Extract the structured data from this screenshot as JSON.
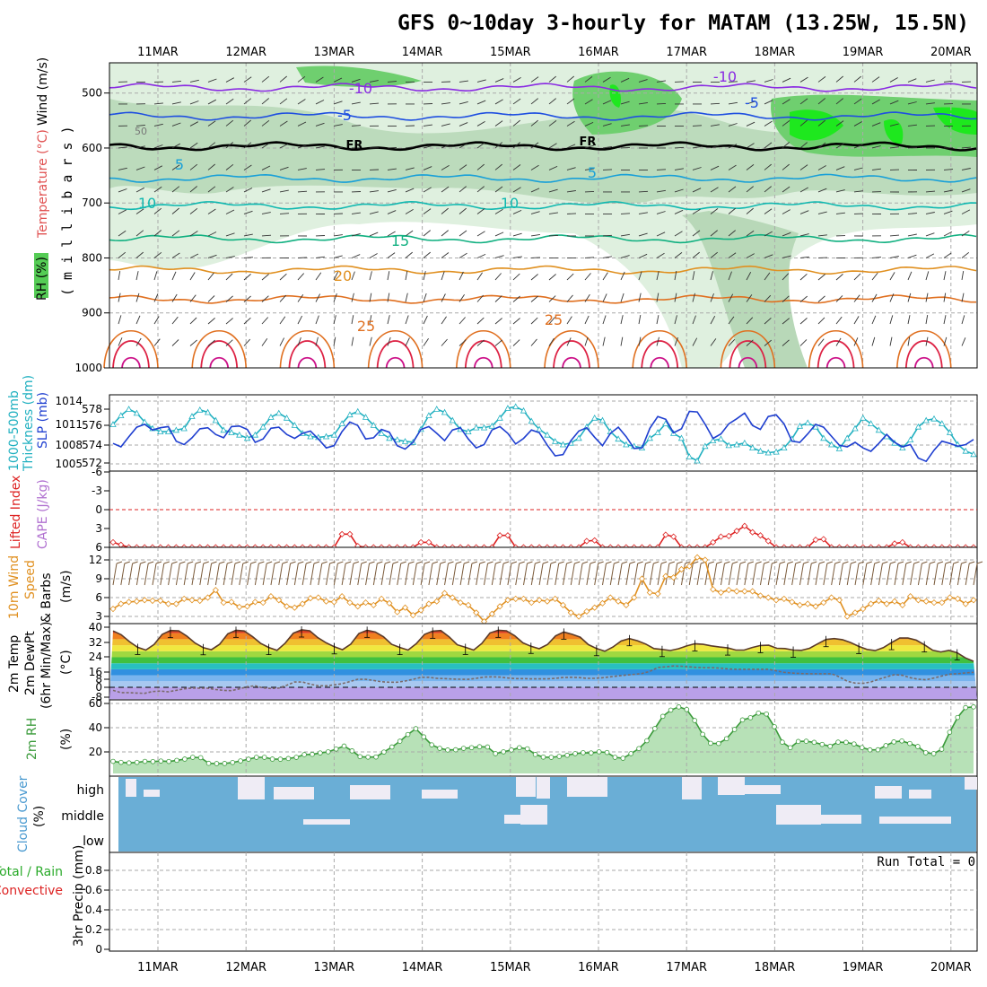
{
  "title": "GFS 0~10day 3-hourly for MATAM (13.25W, 15.5N)",
  "dates": [
    "11MAR",
    "12MAR",
    "13MAR",
    "14MAR",
    "15MAR",
    "16MAR",
    "17MAR",
    "18MAR",
    "19MAR",
    "20MAR"
  ],
  "colors": {
    "frame": "#000000",
    "grid": "#aaaaaa",
    "rh_green_light": "#dff0df",
    "rh_green_mid": "#b8d8b8",
    "rh_green_dark": "#6fcf6f",
    "rh_green_bright": "#1ee81e",
    "thickness": "#20b0c0",
    "slp": "#1f3fd0",
    "lifted_index": "#dd2222",
    "cape": "#b070d0",
    "wind_speed": "#e09020",
    "wind_barb": "#7a5a3a",
    "dewpoint": "#7a6a6a",
    "rh2m_line": "#3a9a3a",
    "cloud_fill": "#6aaed6",
    "cloud_gap": "#efecf5",
    "precip_total": "#2aaa2a",
    "precip_convective": "#dd2222"
  },
  "panels": {
    "upper": {
      "ylabel_rh": "RH (%)",
      "ylabel_temp": "Temperature (°C)",
      "ylabel_wind": "Wind (m/s)",
      "ylabel_p": "( m i l l i b a r s )",
      "ticks": [
        "500",
        "600",
        "700",
        "800",
        "900",
        "1000"
      ],
      "rh_label": "50",
      "isotherm_labels": [
        {
          "text": "-10",
          "color": "#8a2be2"
        },
        {
          "text": "-10",
          "color": "#8a2be2"
        },
        {
          "text": "-5",
          "color": "#1f4fe0"
        },
        {
          "text": "-5",
          "color": "#1f4fe0"
        },
        {
          "text": "FR",
          "color": "#000000"
        },
        {
          "text": "FR",
          "color": "#000000"
        },
        {
          "text": "5",
          "color": "#18a0d8"
        },
        {
          "text": "5",
          "color": "#18a0d8"
        },
        {
          "text": "10",
          "color": "#10b8b0"
        },
        {
          "text": "10",
          "color": "#10b8b0"
        },
        {
          "text": "15",
          "color": "#10b080"
        },
        {
          "text": "20",
          "color": "#e09020"
        },
        {
          "text": "25",
          "color": "#e07020"
        },
        {
          "text": "25",
          "color": "#e07020"
        }
      ]
    },
    "thickness_slp": {
      "ylabel_left_top": "1000-500mb",
      "ylabel_left_bottom": "Thickness (dm)",
      "ylabel_right": "SLP (mb)",
      "thickness_ticks": [
        "578",
        "576",
        "574",
        "572"
      ],
      "slp_ticks": [
        "1014",
        "1011",
        "1008",
        "1005"
      ]
    },
    "li_cape": {
      "ylabel_li": "Lifted Index",
      "ylabel_cape": "CAPE (J/kg)",
      "ticks": [
        "-6",
        "-3",
        "0",
        "3",
        "6"
      ]
    },
    "wind10m": {
      "ylabel_1": "10m Wind",
      "ylabel_2": "Speed",
      "ylabel_3": "& Barbs",
      "units": "(m/s)",
      "ticks": [
        "12",
        "9",
        "6",
        "3"
      ]
    },
    "temp2m": {
      "ylabel_1": "2m Temp",
      "ylabel_2": "2m DewPt",
      "ylabel_3": "(6hr Min/Max)",
      "units": "(°C)",
      "ticks": [
        "40",
        "32",
        "24",
        "16",
        "8",
        "0",
        "-8"
      ]
    },
    "rh2m": {
      "ylabel": "2m RH",
      "units": "(%)",
      "ticks": [
        "60",
        "40",
        "20"
      ]
    },
    "cloud": {
      "ylabel": "Cloud Cover",
      "units": "(%)",
      "levels": [
        "high",
        "middle",
        "low"
      ]
    },
    "precip": {
      "ylabel_1": "Total / Rain",
      "ylabel_2": "Convective",
      "ylabel_3": "3hr Precip (mm)",
      "run_total": "Run Total = 0",
      "ticks": [
        "0.8",
        "0.6",
        "0.4",
        "0.2",
        "0"
      ]
    }
  },
  "chart_data": [
    {
      "type": "line",
      "panel": "thickness_slp",
      "x": "3-hourly steps from 10MAR 12Z to 20MAR 12Z",
      "series": [
        {
          "name": "1000-500mb Thickness (dm)",
          "values": [
            576.5,
            577.6,
            578.4,
            577.9,
            576.8,
            576.0,
            575.6,
            575.6,
            575.8,
            576.0,
            577.5,
            578.3,
            578.0,
            577.0,
            575.8,
            575.5,
            575.2,
            574.8,
            575.2,
            576.2,
            577.4,
            577.9,
            577.3,
            576.4,
            575.4,
            575.0,
            574.9,
            575.0,
            575.2,
            576.6,
            577.7,
            578.1,
            577.4,
            576.4,
            575.4,
            574.8,
            574.6,
            574.4,
            574.3,
            575.9,
            577.6,
            578.4,
            578.0,
            577.0,
            575.9,
            575.6,
            576.1,
            576.1,
            576.3,
            577.3,
            578.5,
            578.7,
            578.2,
            576.9,
            575.9,
            575.2,
            574.4,
            574.0,
            574.2,
            574.8,
            576.2,
            577.3,
            577.0,
            575.6,
            574.7,
            574.0,
            573.8,
            573.6,
            574.8,
            575.5,
            576.6,
            575.4,
            574.8,
            572.5,
            572.0,
            573.8,
            574.5,
            574.7,
            573.9,
            574.0,
            574.2,
            573.6,
            573.2,
            573.0,
            573.1,
            573.6,
            574.7,
            576.3,
            576.7,
            576.2,
            574.8,
            574.0,
            573.5,
            574.8,
            576.0,
            577.3,
            576.6,
            575.8,
            575.0,
            574.2,
            573.6,
            574.6,
            576.2,
            577.0,
            577.2,
            576.6,
            575.5,
            574.0,
            573.2,
            572.8
          ]
        },
        {
          "name": "SLP (mb)",
          "values": [
            1007.8,
            1007.2,
            1009.0,
            1010.7,
            1011.2,
            1010.2,
            1010.6,
            1010.8,
            1008.2,
            1007.6,
            1008.8,
            1010.4,
            1010.6,
            1009.4,
            1008.8,
            1010.8,
            1010.9,
            1010.3,
            1008.0,
            1008.6,
            1010.5,
            1010.7,
            1009.4,
            1008.7,
            1009.6,
            1010.0,
            1008.6,
            1007.0,
            1007.4,
            1009.9,
            1011.6,
            1011.0,
            1008.6,
            1008.8,
            1010.3,
            1009.8,
            1007.4,
            1006.8,
            1008.0,
            1010.3,
            1010.8,
            1009.6,
            1008.3,
            1010.2,
            1010.6,
            1008.6,
            1007.0,
            1007.6,
            1010.2,
            1010.8,
            1009.6,
            1007.7,
            1008.7,
            1010.2,
            1009.7,
            1007.5,
            1005.6,
            1005.8,
            1008.3,
            1010.0,
            1010.6,
            1008.9,
            1007.4,
            1009.6,
            1010.7,
            1009.0,
            1006.9,
            1007.0,
            1010.5,
            1012.6,
            1012.1,
            1009.7,
            1010.4,
            1013.5,
            1013.4,
            1011.2,
            1008.7,
            1009.5,
            1011.3,
            1012.2,
            1013.2,
            1011.0,
            1010.3,
            1012.6,
            1012.9,
            1011.3,
            1008.2,
            1008.0,
            1009.5,
            1011.2,
            1010.7,
            1009.1,
            1007.5,
            1007.2,
            1008.0,
            1007.0,
            1006.4,
            1007.8,
            1009.4,
            1008.0,
            1007.2,
            1007.6,
            1005.2,
            1004.6,
            1006.6,
            1008.2,
            1007.8,
            1007.3,
            1007.6,
            1008.5
          ]
        }
      ]
    },
    {
      "type": "line",
      "panel": "li_cape",
      "series": [
        {
          "name": "Lifted Index",
          "values": [
            5.2,
            5.6,
            6,
            6,
            6,
            6,
            6,
            6,
            6,
            6,
            6,
            6,
            6,
            6,
            6,
            6,
            6,
            6,
            6,
            6,
            6,
            6,
            6,
            6,
            6,
            6,
            6,
            6,
            6,
            3.9,
            3.9,
            5.8,
            6,
            6,
            6,
            6,
            6,
            6,
            6,
            5.2,
            5.2,
            6,
            6,
            6,
            6,
            6,
            6,
            6,
            6,
            4.1,
            4.1,
            6,
            6,
            6,
            6,
            6,
            6,
            6,
            6,
            6,
            5.0,
            4.9,
            6,
            6,
            6,
            6,
            6,
            6,
            6,
            6,
            4.0,
            4.3,
            6,
            6,
            6,
            6,
            5.2,
            4.3,
            4.2,
            3.4,
            2.6,
            3.6,
            4.1,
            5.0,
            6,
            6,
            6,
            6,
            6,
            4.8,
            4.7,
            6,
            6,
            6,
            6,
            6,
            6,
            6,
            6,
            5.4,
            5.2,
            6,
            6,
            6,
            6,
            6,
            6,
            6,
            6,
            6
          ]
        },
        {
          "name": "CAPE (J/kg)",
          "values": []
        }
      ]
    },
    {
      "type": "line",
      "panel": "wind10m",
      "series": [
        {
          "name": "10m Wind Speed (m/s)",
          "values": [
            4.2,
            5.0,
            5.3,
            5.4,
            5.6,
            5.5,
            5.5,
            5.0,
            5.0,
            5.8,
            5.6,
            5.5,
            6.0,
            7.2,
            5.2,
            5.3,
            4.5,
            4.6,
            5.3,
            5.2,
            6.2,
            5.6,
            4.6,
            4.4,
            5.0,
            5.9,
            6.0,
            5.4,
            5.3,
            6.2,
            5.2,
            4.6,
            5.2,
            4.8,
            5.8,
            5.1,
            3.7,
            4.4,
            3.2,
            4.0,
            5.0,
            5.4,
            6.7,
            6.0,
            5.2,
            4.8,
            3.6,
            2.2,
            3.4,
            4.6,
            5.6,
            5.8,
            5.8,
            5.2,
            5.6,
            5.4,
            5.8,
            4.8,
            3.6,
            3.0,
            3.8,
            4.4,
            5.1,
            6.0,
            5.4,
            4.8,
            6.0,
            9.0,
            6.8,
            6.6,
            9.4,
            9.2,
            10.5,
            11.0,
            12.4,
            12.0,
            7.3,
            6.8,
            7.2,
            7.0,
            7.0,
            7.0,
            6.3,
            6.0,
            5.6,
            5.8,
            5.3,
            4.8,
            5.0,
            4.6,
            5.2,
            6.0,
            5.6,
            3.0,
            3.6,
            4.2,
            5.0,
            5.5,
            5.0,
            5.4,
            4.8,
            6.2,
            5.6,
            5.4,
            5.2,
            5.2,
            6.0,
            5.8,
            5.0,
            5.6
          ]
        }
      ]
    },
    {
      "type": "area",
      "panel": "temp2m",
      "series": [
        {
          "name": "2m Temp (°C)",
          "values": [
            37.5,
            35.0,
            30.4,
            26.6,
            24.8,
            28.5,
            35.2,
            37.8,
            37.6,
            34.1,
            29.5,
            26.4,
            25.0,
            28.6,
            35.6,
            38.0,
            37.5,
            33.8,
            29.3,
            26.5,
            24.6,
            29.4,
            36.0,
            38.2,
            37.6,
            33.0,
            29.6,
            27.0,
            25.0,
            28.7,
            35.8,
            38.0,
            36.8,
            33.6,
            28.6,
            26.5,
            24.8,
            29.0,
            35.2,
            37.4,
            37.8,
            33.6,
            28.3,
            26.6,
            24.8,
            29.2,
            36.2,
            38.0,
            37.6,
            34.4,
            29.6,
            27.3,
            25.7,
            28.4,
            34.2,
            36.8,
            35.3,
            33.4,
            28.4,
            25.8,
            24.0,
            26.8,
            30.8,
            32.4,
            31.0,
            28.8,
            25.8,
            25.2,
            24.5,
            25.7,
            27.5,
            29.0,
            28.6,
            27.6,
            26.8,
            26.2,
            24.8,
            24.8,
            26.5,
            27.8,
            28.0,
            26.0,
            25.8,
            24.8,
            24.6,
            26.0,
            29.0,
            31.8,
            32.4,
            31.7,
            29.8,
            27.2,
            25.2,
            24.4,
            26.4,
            29.8,
            32.8,
            32.8,
            31.4,
            28.3,
            24.7,
            23.5,
            24.6,
            23.0,
            19.6,
            17.3
          ]
        },
        {
          "name": "2m DewPt (°C)",
          "values": [
            -2.0,
            -3.5,
            -3.6,
            -3.8,
            -4.0,
            -2.8,
            -2.5,
            -3.0,
            -2.0,
            -1.0,
            -0.5,
            -0.6,
            -0.6,
            -1.5,
            -2.0,
            -2.2,
            -1.0,
            0.4,
            1.0,
            -0.4,
            -0.8,
            -0.5,
            1.4,
            3.6,
            3.5,
            2.1,
            1.0,
            1.0,
            1.6,
            2.4,
            3.8,
            5.4,
            5.3,
            4.6,
            3.7,
            3.4,
            3.4,
            4.2,
            5.3,
            6.6,
            6.7,
            6.0,
            5.8,
            5.5,
            5.4,
            5.3,
            6.0,
            6.8,
            7.0,
            6.8,
            6.2,
            5.8,
            5.8,
            5.6,
            5.6,
            5.6,
            6.0,
            6.5,
            6.7,
            6.5,
            6.0,
            6.0,
            6.4,
            7.0,
            7.6,
            8.2,
            8.6,
            9.2,
            10.6,
            13.2,
            13.6,
            14.2,
            14.0,
            13.6,
            13.2,
            13.0,
            13.0,
            12.7,
            12.2,
            12.0,
            12.0,
            12.0,
            12.0,
            12.0,
            11.0,
            10.0,
            9.5,
            9.2,
            9.0,
            9.0,
            9.0,
            9.0,
            7.0,
            4.0,
            2.8,
            2.6,
            3.6,
            5.4,
            7.0,
            8.4,
            8.0,
            6.4,
            5.4,
            5.0,
            6.2,
            7.5,
            8.8,
            9.0,
            9.6,
            10.0
          ]
        }
      ]
    },
    {
      "type": "area",
      "panel": "rh2m",
      "series": [
        {
          "name": "2m RH (%)",
          "values": [
            10.5,
            9.6,
            9.2,
            9.6,
            10.5,
            10.3,
            10.8,
            10.4,
            11.4,
            12.5,
            14.0,
            13.7,
            8.8,
            8.6,
            8.7,
            9.5,
            10.9,
            12.4,
            14.0,
            14.0,
            12.5,
            12.4,
            13.0,
            14.0,
            16.4,
            16.6,
            17.8,
            18.8,
            21.2,
            23.8,
            19.6,
            14.6,
            14.2,
            14.3,
            18.6,
            23.0,
            28.0,
            33.8,
            38.9,
            31.8,
            24.8,
            21.8,
            20.4,
            20.6,
            21.8,
            22.4,
            23.2,
            23.0,
            17.2,
            18.8,
            20.4,
            22.4,
            21.4,
            16.5,
            14.2,
            14.0,
            14.8,
            15.8,
            17.2,
            18.0,
            17.8,
            18.8,
            18.2,
            14.0,
            13.2,
            17.2,
            21.6,
            28.4,
            39.0,
            49.6,
            55.0,
            57.8,
            55.5,
            46.0,
            34.0,
            26.2,
            26.0,
            30.2,
            38.2,
            46.5,
            48.4,
            52.4,
            51.6,
            40.6,
            27.2,
            22.4,
            27.8,
            28.0,
            27.0,
            25.2,
            23.6,
            27.2,
            27.0,
            25.6,
            22.5,
            20.5,
            20.6,
            24.2,
            27.4,
            28.2,
            26.0,
            23.4,
            18.0,
            17.2,
            21.0,
            35.8,
            48.6,
            57.2,
            57.8
          ]
        }
      ]
    },
    {
      "type": "bar",
      "panel": "precip",
      "series": [
        {
          "name": "Total / Rain (mm)",
          "values": [
            0
          ]
        },
        {
          "name": "Convective (mm)",
          "values": [
            0
          ]
        }
      ]
    }
  ]
}
